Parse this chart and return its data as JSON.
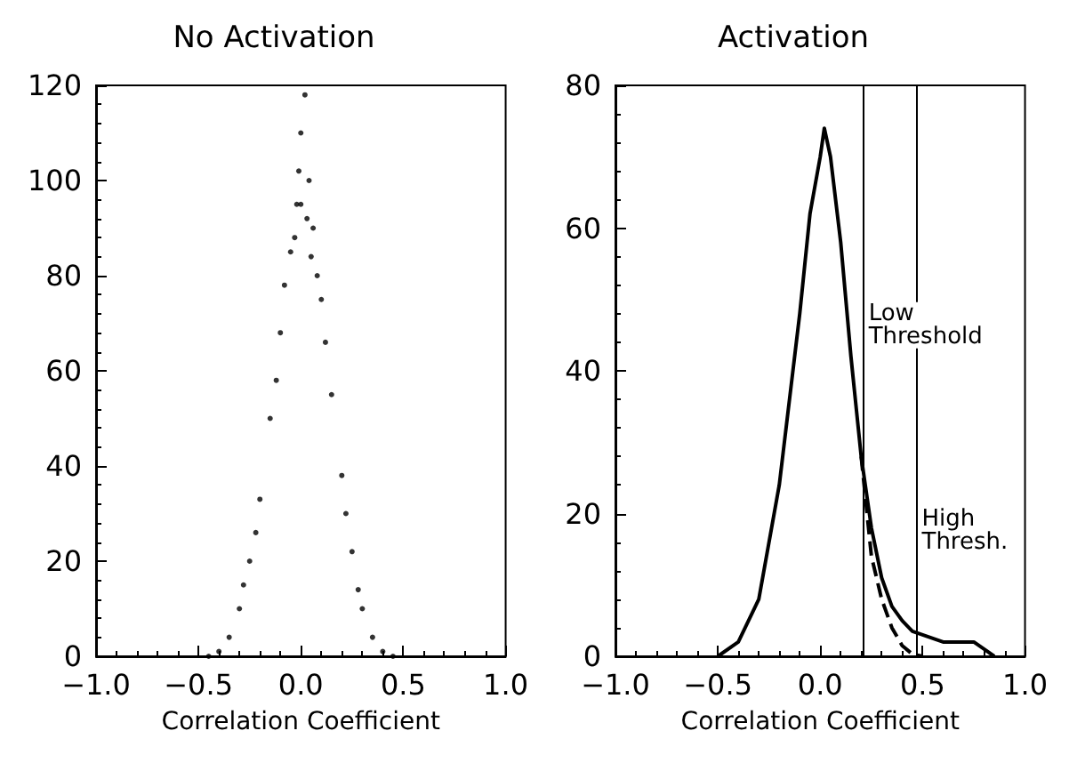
{
  "chart_data": [
    {
      "type": "scatter",
      "title": "No Activation",
      "xlabel": "Correlation Coefficient",
      "color": "#000000",
      "marker": "circle",
      "grid": false,
      "x": [
        -0.45,
        -0.4,
        -0.35,
        -0.3,
        -0.28,
        -0.25,
        -0.22,
        -0.2,
        -0.15,
        -0.12,
        -0.1,
        -0.08,
        -0.05,
        -0.03,
        -0.02,
        -0.01,
        0,
        0,
        0.02,
        0.03,
        0.04,
        0.05,
        0.06,
        0.08,
        0.1,
        0.12,
        0.15,
        0.2,
        0.22,
        0.25,
        0.28,
        0.3,
        0.35,
        0.4,
        0.45
      ],
      "values": [
        0,
        1,
        4,
        10,
        15,
        20,
        26,
        33,
        50,
        58,
        68,
        78,
        85,
        88,
        95,
        102,
        110,
        95,
        118,
        92,
        100,
        84,
        90,
        80,
        75,
        66,
        55,
        38,
        30,
        22,
        14,
        10,
        4,
        1,
        0
      ],
      "xlim": [
        -1,
        1
      ],
      "xticks": [
        {
          "value": -1,
          "label": "−1.0"
        },
        {
          "value": -0.5,
          "label": "−0.5"
        },
        {
          "value": 0,
          "label": "0.0"
        },
        0.5,
        {
          "value": 1,
          "label": "1.0"
        }
      ],
      "ylim": [
        0,
        120
      ],
      "yticks": [
        0,
        20,
        40,
        60,
        80,
        100,
        120
      ]
    },
    {
      "type": "line",
      "title": "Activation",
      "xlabel": "Correlation Coefficient",
      "marker": "none",
      "grid": false,
      "series": [
        {
          "color": "#000000",
          "line_style": "solid",
          "x": [
            -0.5,
            -0.4,
            -0.3,
            -0.2,
            -0.1,
            -0.05,
            0,
            0.02,
            0.05,
            0.1,
            0.15,
            0.2,
            0.25,
            0.3,
            0.35,
            0.4,
            0.45,
            0.5,
            0.6,
            0.75,
            0.8,
            0.85
          ],
          "values": [
            0,
            2,
            8,
            24,
            48,
            62,
            70,
            74,
            70,
            58,
            42,
            28,
            18,
            11,
            7,
            5,
            3.5,
            3,
            2,
            2,
            1,
            0
          ]
        },
        {
          "color": "#000000",
          "line_style": "dashed",
          "x": [
            0.2,
            0.25,
            0.3,
            0.35,
            0.4,
            0.45,
            0.5
          ],
          "values": [
            28,
            14,
            8,
            4,
            1.5,
            0.3,
            0
          ]
        }
      ],
      "ref_lines": [
        {
          "axis": "x",
          "value": 0.21,
          "label": "Low\nThreshold"
        },
        {
          "axis": "x",
          "value": 0.47,
          "label": "High\nThresh."
        }
      ],
      "xlim": [
        -1,
        1
      ],
      "xticks": [
        {
          "value": -1,
          "label": "−1.0"
        },
        {
          "value": -0.5,
          "label": "−0.5"
        },
        {
          "value": 0,
          "label": "0.0"
        },
        0.5,
        {
          "value": 1,
          "label": "1.0"
        }
      ],
      "ylim": [
        0,
        80
      ],
      "yticks": [
        0,
        20,
        40,
        60,
        80
      ]
    }
  ]
}
